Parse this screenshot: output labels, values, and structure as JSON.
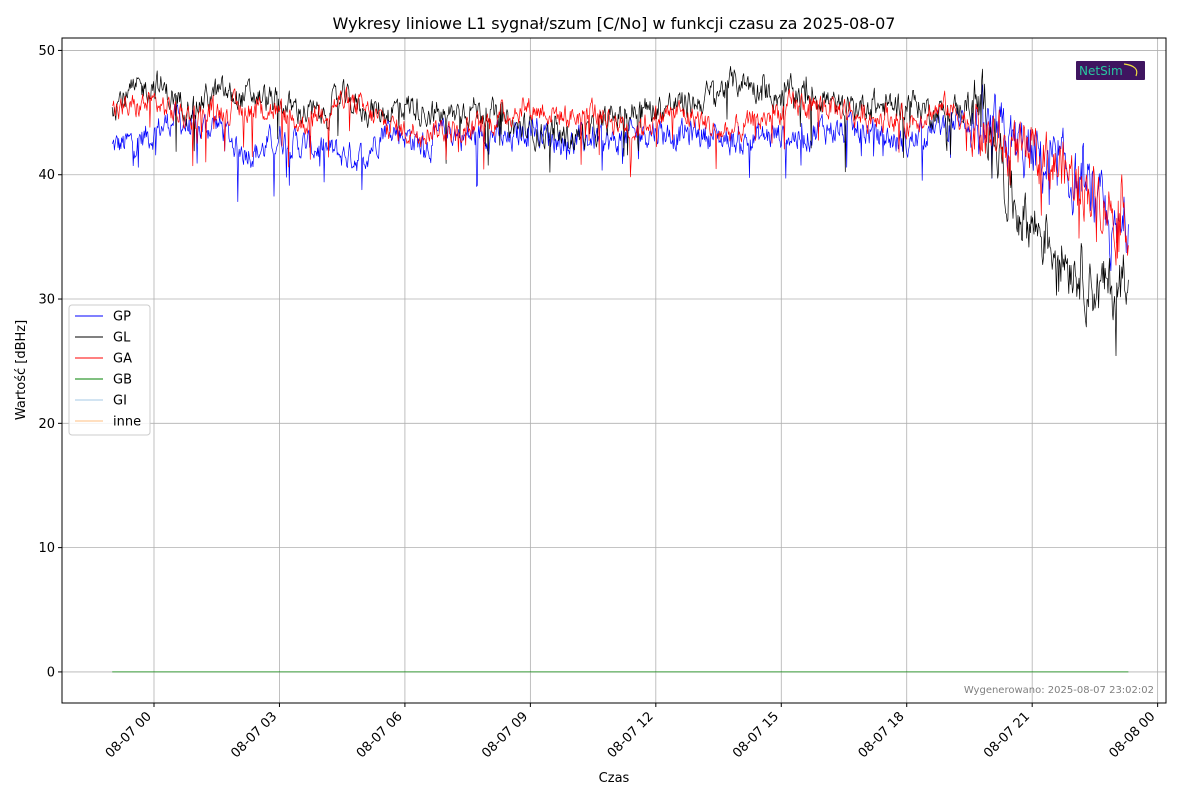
{
  "chart_data": {
    "type": "line",
    "title": "Wykresy liniowe L1 sygnał/szum [C/No] w funkcji czasu za 2025-08-07",
    "xlabel": "Czas",
    "ylabel": "Wartość [dBHz]",
    "xlim_hours": [
      -2.2,
      24.2
    ],
    "ylim": [
      -2.5,
      51
    ],
    "x_ticks": [
      {
        "h": 0,
        "label": "08-07 00"
      },
      {
        "h": 3,
        "label": "08-07 03"
      },
      {
        "h": 6,
        "label": "08-07 06"
      },
      {
        "h": 9,
        "label": "08-07 09"
      },
      {
        "h": 12,
        "label": "08-07 12"
      },
      {
        "h": 15,
        "label": "08-07 15"
      },
      {
        "h": 18,
        "label": "08-07 18"
      },
      {
        "h": 21,
        "label": "08-07 21"
      },
      {
        "h": 24,
        "label": "08-08 00"
      }
    ],
    "y_ticks": [
      0,
      10,
      20,
      30,
      40,
      50
    ],
    "grid": true,
    "legend_position": "center-left",
    "series": [
      {
        "name": "GP",
        "color": "#0000ff",
        "x": [
          -1,
          -0.5,
          0,
          0.5,
          1,
          1.5,
          2,
          2.5,
          3,
          3.5,
          4,
          4.5,
          5,
          5.5,
          6,
          6.5,
          7,
          7.5,
          8,
          8.5,
          9,
          9.5,
          10,
          10.5,
          11,
          11.5,
          12,
          12.5,
          13,
          13.5,
          14,
          14.5,
          15,
          15.5,
          16,
          16.5,
          17,
          17.5,
          18,
          18.5,
          19,
          19.5,
          20,
          20.5,
          21,
          21.5,
          22,
          22.5,
          23,
          23.3
        ],
        "y": [
          42.2,
          42.6,
          43.4,
          44.6,
          43.5,
          44.2,
          42.2,
          41.8,
          43.1,
          42.4,
          42.1,
          41.6,
          41.4,
          43.8,
          43.3,
          42.2,
          43.6,
          43.0,
          43.4,
          42.5,
          44.1,
          43.0,
          42.5,
          43.0,
          42.5,
          43.3,
          43.6,
          43.2,
          43.4,
          43.0,
          42.6,
          43.0,
          43.3,
          43.0,
          43.8,
          43.5,
          43.4,
          43.0,
          42.4,
          43.6,
          44.1,
          44.5,
          43.3,
          42.5,
          41.4,
          40.6,
          39.6,
          37.6,
          34.5,
          36.0
        ]
      },
      {
        "name": "GL",
        "color": "#000000",
        "x": [
          -1,
          -0.5,
          0,
          0.5,
          1,
          1.5,
          2,
          2.5,
          3,
          3.5,
          4,
          4.5,
          5,
          5.5,
          6,
          6.5,
          7,
          7.5,
          8,
          8.5,
          9,
          9.5,
          10,
          10.5,
          11,
          11.5,
          12,
          12.5,
          13,
          13.5,
          14,
          14.5,
          15,
          15.5,
          16,
          16.5,
          17,
          17.5,
          18,
          18.5,
          19,
          19.5,
          20,
          20.5,
          21,
          21.5,
          22,
          22.5,
          23,
          23.3
        ],
        "y": [
          45.8,
          46.5,
          47.4,
          46.0,
          45.6,
          46.6,
          46.2,
          46.3,
          45.6,
          45.2,
          44.7,
          46.2,
          45.3,
          45.0,
          45.6,
          45.2,
          44.6,
          45.5,
          45.0,
          43.8,
          43.6,
          43.2,
          43.0,
          43.4,
          44.6,
          45.1,
          45.3,
          45.6,
          45.8,
          46.8,
          47.6,
          47.0,
          46.3,
          46.8,
          46.2,
          45.0,
          45.8,
          45.4,
          46.0,
          45.2,
          45.0,
          45.6,
          44.8,
          38.0,
          36.2,
          34.5,
          33.0,
          31.0,
          30.5,
          33.5
        ]
      },
      {
        "name": "GA",
        "color": "#ff0000",
        "x": [
          -1,
          -0.5,
          0,
          0.5,
          1,
          1.5,
          2,
          2.5,
          3,
          3.5,
          4,
          4.5,
          5,
          5.5,
          6,
          6.5,
          7,
          7.5,
          8,
          8.5,
          9,
          9.5,
          10,
          10.5,
          11,
          11.5,
          12,
          12.5,
          13,
          13.5,
          14,
          14.5,
          15,
          15.5,
          16,
          16.5,
          17,
          17.5,
          18,
          18.5,
          19,
          19.5,
          20,
          20.5,
          21,
          21.5,
          22,
          22.5,
          23,
          23.3
        ],
        "y": [
          45.1,
          45.4,
          45.8,
          45.0,
          44.6,
          45.3,
          45.2,
          45.5,
          45.0,
          44.0,
          45.2,
          46.0,
          45.2,
          44.2,
          43.4,
          43.8,
          43.6,
          43.4,
          44.2,
          45.0,
          45.4,
          45.0,
          44.6,
          45.2,
          44.4,
          43.6,
          44.6,
          45.0,
          44.5,
          43.4,
          43.6,
          44.4,
          45.2,
          45.6,
          45.6,
          45.2,
          44.6,
          44.8,
          44.2,
          45.0,
          45.4,
          44.2,
          43.0,
          41.6,
          41.4,
          41.0,
          39.8,
          38.6,
          37.2,
          36.5
        ]
      },
      {
        "name": "GB",
        "color": "#008000",
        "x": [
          -1,
          23.3
        ],
        "y": [
          0,
          0
        ]
      },
      {
        "name": "GI",
        "color": "#a6c8e6",
        "x": [
          -1,
          23.3
        ],
        "y": [
          0,
          0
        ]
      },
      {
        "name": "inne",
        "color": "#ffbf80",
        "x": [
          -1,
          23.3
        ],
        "y": [
          0,
          0
        ]
      }
    ]
  },
  "watermark": {
    "text": "Wygenerowano: 2025-08-07 23:02:02",
    "color": "#7f7f7f"
  },
  "logo": {
    "text": "NetSim",
    "bg": "#3f1560",
    "fg": "#28c7a0",
    "accent": "#f0e040"
  }
}
